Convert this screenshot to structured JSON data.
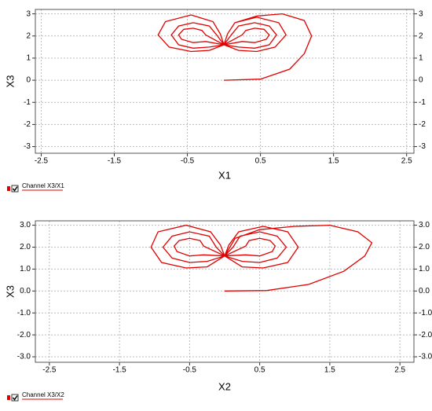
{
  "chart_data": [
    {
      "type": "line",
      "x_label": "X1",
      "y_label": "X3",
      "xlim": [
        -2.58,
        2.6
      ],
      "ylim": [
        -3.3,
        3.2
      ],
      "xticks": [
        -2.5,
        -1.5,
        -0.5,
        0.5,
        1.5,
        2.5
      ],
      "yticks": [
        -3,
        -2,
        -1,
        0,
        1,
        2,
        3
      ],
      "grid": true,
      "series": [
        {
          "name": "Channel X3/X1",
          "color": "#e00000",
          "x": [
            0,
            0.5,
            0.9,
            1.1,
            1.2,
            1.1,
            0.8,
            0.45,
            0.15,
            0.05,
            0,
            0.2,
            0.45,
            0.7,
            0.85,
            0.75,
            0.45,
            0.15,
            0.05,
            0,
            -0.2,
            -0.45,
            -0.75,
            -0.9,
            -0.8,
            -0.45,
            -0.15,
            -0.05,
            0,
            0.2,
            0.42,
            0.62,
            0.72,
            0.62,
            0.42,
            0.2,
            0.1,
            0,
            -0.2,
            -0.42,
            -0.62,
            -0.72,
            -0.62,
            -0.42,
            -0.2,
            -0.1,
            0,
            0.25,
            0.42,
            0.58,
            0.62,
            0.55,
            0.42,
            0.3,
            0.25,
            0,
            -0.25,
            -0.42,
            -0.58,
            -0.62,
            -0.55,
            -0.42,
            -0.3,
            -0.25,
            0
          ],
          "y": [
            0,
            0.05,
            0.5,
            1.2,
            2.0,
            2.7,
            3.0,
            2.9,
            2.6,
            2.1,
            1.6,
            1.35,
            1.3,
            1.5,
            2.05,
            2.6,
            2.85,
            2.6,
            2.1,
            1.6,
            1.35,
            1.3,
            1.5,
            2.05,
            2.65,
            2.95,
            2.65,
            2.1,
            1.6,
            1.5,
            1.45,
            1.6,
            2.05,
            2.45,
            2.6,
            2.45,
            2.05,
            1.6,
            1.5,
            1.45,
            1.6,
            2.05,
            2.45,
            2.6,
            2.45,
            2.05,
            1.6,
            1.75,
            1.7,
            1.85,
            2.05,
            2.3,
            2.35,
            2.25,
            2.05,
            1.6,
            1.75,
            1.7,
            1.85,
            2.05,
            2.3,
            2.35,
            2.25,
            2.05,
            1.6
          ]
        }
      ]
    },
    {
      "type": "line",
      "x_label": "X2",
      "y_label": "X3",
      "xlim": [
        -2.7,
        2.7
      ],
      "ylim": [
        -3.25,
        3.2
      ],
      "xticks": [
        -2.5,
        -1.5,
        -0.5,
        0.5,
        1.5,
        2.5
      ],
      "yticks": [
        {
          "value": -3,
          "label": "-3.0"
        },
        {
          "value": -2,
          "label": "-2.0"
        },
        {
          "value": -1,
          "label": "-1.0"
        },
        {
          "value": 0,
          "label": "0.0"
        },
        {
          "value": 1,
          "label": "1.0"
        },
        {
          "value": 2,
          "label": "2.0"
        },
        {
          "value": 3,
          "label": "3.0"
        }
      ],
      "grid": true,
      "series": [
        {
          "name": "Channel X3/X2",
          "color": "#e00000",
          "x": [
            0,
            0.6,
            1.2,
            1.7,
            2.0,
            2.1,
            1.9,
            1.5,
            1.0,
            0.5,
            0.15,
            0,
            0.25,
            0.55,
            0.9,
            1.05,
            0.9,
            0.55,
            0.2,
            0.06,
            0,
            -0.25,
            -0.55,
            -0.9,
            -1.05,
            -0.95,
            -0.55,
            -0.2,
            -0.06,
            0,
            0.25,
            0.5,
            0.75,
            0.88,
            0.75,
            0.5,
            0.22,
            0.12,
            0,
            -0.25,
            -0.5,
            -0.75,
            -0.88,
            -0.75,
            -0.5,
            -0.22,
            -0.12,
            0,
            0.3,
            0.5,
            0.68,
            0.72,
            0.65,
            0.5,
            0.35,
            0.3,
            0,
            -0.3,
            -0.5,
            -0.68,
            -0.72,
            -0.65,
            -0.5,
            -0.35,
            -0.3,
            0
          ],
          "y": [
            0,
            0.02,
            0.3,
            0.9,
            1.6,
            2.2,
            2.7,
            3.0,
            2.95,
            2.8,
            2.4,
            1.6,
            1.1,
            1.05,
            1.3,
            2.0,
            2.7,
            2.95,
            2.7,
            2.1,
            1.6,
            1.1,
            1.05,
            1.3,
            2.0,
            2.7,
            3.0,
            2.7,
            2.1,
            1.6,
            1.35,
            1.3,
            1.5,
            2.0,
            2.5,
            2.7,
            2.5,
            2.0,
            1.6,
            1.35,
            1.3,
            1.5,
            2.0,
            2.5,
            2.7,
            2.5,
            2.0,
            1.6,
            1.65,
            1.6,
            1.8,
            2.05,
            2.3,
            2.4,
            2.3,
            2.05,
            1.6,
            1.65,
            1.6,
            1.8,
            2.05,
            2.3,
            2.4,
            2.3,
            2.05,
            1.6
          ]
        }
      ]
    }
  ]
}
